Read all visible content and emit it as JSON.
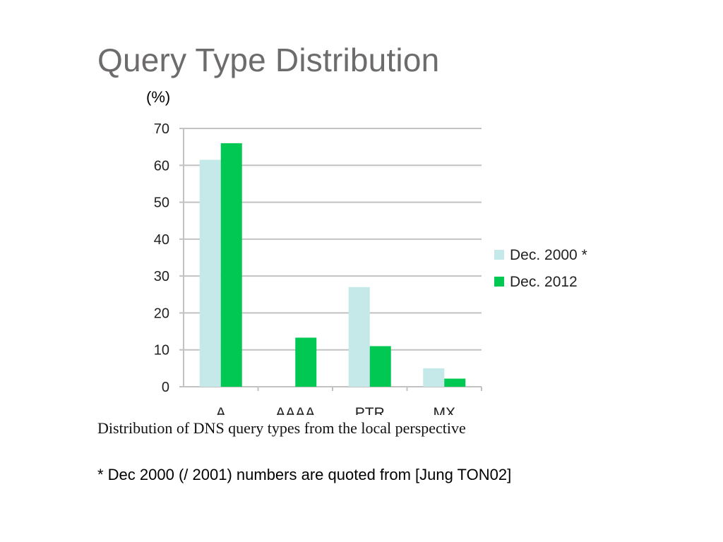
{
  "slide": {
    "title": "Query Type Distribution",
    "unit_label": "(%)",
    "caption": "Distribution of DNS query types from the local perspective",
    "footnote": "* Dec 2000 (/ 2001) numbers are quoted from [Jung TON02]"
  },
  "chart_data": {
    "type": "bar",
    "categories": [
      "A",
      "AAAA",
      "PTR",
      "MX"
    ],
    "series": [
      {
        "name": "Dec. 2000 *",
        "values": [
          61.5,
          null,
          27,
          5
        ],
        "color": "#c5e8e8"
      },
      {
        "name": "Dec. 2012",
        "values": [
          66,
          13.3,
          11,
          2.2
        ],
        "color": "#00c853"
      }
    ],
    "ylim": [
      0,
      70
    ],
    "yticks": [
      0,
      10,
      20,
      30,
      40,
      50,
      60,
      70
    ],
    "grid": true,
    "legend": "right"
  }
}
